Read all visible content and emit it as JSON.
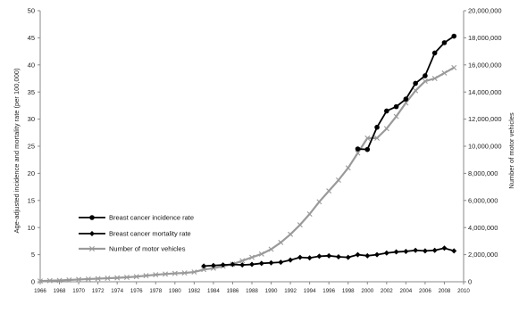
{
  "chart_data": {
    "type": "line",
    "title": "",
    "xlabel": "",
    "ylabel": "Age-adjusted incidence and mortality rate (per 100,000)",
    "y2label": "Number of motor vehicles",
    "ylim": [
      0,
      50
    ],
    "y2lim": [
      0,
      20000000
    ],
    "xlim": [
      1966,
      2010
    ],
    "grid": false,
    "legend_position": "center-left",
    "x_tick_labels": [
      "1966",
      "1968",
      "1970",
      "1972",
      "1974",
      "1976",
      "1978",
      "1980",
      "1982",
      "1984",
      "1986",
      "1988",
      "1990",
      "1992",
      "1994",
      "1996",
      "1998",
      "2000",
      "2002",
      "2004",
      "2006",
      "2008",
      "2010"
    ],
    "y_tick_labels": [
      "0",
      "5",
      "10",
      "15",
      "20",
      "25",
      "30",
      "35",
      "40",
      "45",
      "50"
    ],
    "y2_tick_labels": [
      "0",
      "2,000,000",
      "4,000,000",
      "6,000,000",
      "8,000,000",
      "10,000,000",
      "12,000,000",
      "14,000,000",
      "16,000,000",
      "18,000,000",
      "20,000,000"
    ],
    "series": [
      {
        "name": "Breast cancer incidence rate",
        "axis": "left",
        "color": "#000000",
        "marker": "circle",
        "x": [
          1999,
          2000,
          2001,
          2002,
          2003,
          2004,
          2005,
          2006,
          2007,
          2008,
          2009
        ],
        "y": [
          24.5,
          24.4,
          28.5,
          31.5,
          32.3,
          33.7,
          36.6,
          38.0,
          42.2,
          44.1,
          45.3
        ]
      },
      {
        "name": "Breast cancer mortality rate",
        "axis": "left",
        "color": "#000000",
        "marker": "diamond",
        "x": [
          1983,
          1984,
          1985,
          1986,
          1987,
          1988,
          1989,
          1990,
          1991,
          1992,
          1993,
          1994,
          1995,
          1996,
          1997,
          1998,
          1999,
          2000,
          2001,
          2002,
          2003,
          2004,
          2005,
          2006,
          2007,
          2008,
          2009
        ],
        "y": [
          2.9,
          3.0,
          3.1,
          3.2,
          3.1,
          3.2,
          3.4,
          3.5,
          3.6,
          4.0,
          4.5,
          4.4,
          4.7,
          4.8,
          4.6,
          4.5,
          5.0,
          4.8,
          5.0,
          5.3,
          5.5,
          5.6,
          5.8,
          5.7,
          5.8,
          6.2,
          5.7
        ]
      },
      {
        "name": "Number of motor vehicles",
        "axis": "right",
        "color": "#9a9a9a",
        "marker": "x",
        "x": [
          1966,
          1967,
          1968,
          1969,
          1970,
          1971,
          1972,
          1973,
          1974,
          1975,
          1976,
          1977,
          1978,
          1979,
          1980,
          1981,
          1982,
          1983,
          1984,
          1985,
          1986,
          1987,
          1988,
          1989,
          1990,
          1991,
          1992,
          1993,
          1994,
          1995,
          1996,
          1997,
          1998,
          1999,
          2000,
          2001,
          2002,
          2003,
          2004,
          2005,
          2006,
          2007,
          2008,
          2009
        ],
        "y": [
          50000,
          80000,
          100000,
          130000,
          170000,
          200000,
          230000,
          260000,
          290000,
          330000,
          380000,
          450000,
          520000,
          570000,
          620000,
          650000,
          720000,
          900000,
          1000000,
          1150000,
          1300000,
          1550000,
          1800000,
          2050000,
          2400000,
          2900000,
          3500000,
          4200000,
          5000000,
          5900000,
          6700000,
          7500000,
          8400000,
          9500000,
          10600000,
          10600000,
          11300000,
          12200000,
          13200000,
          14100000,
          14800000,
          15000000,
          15400000,
          15800000
        ]
      }
    ]
  }
}
